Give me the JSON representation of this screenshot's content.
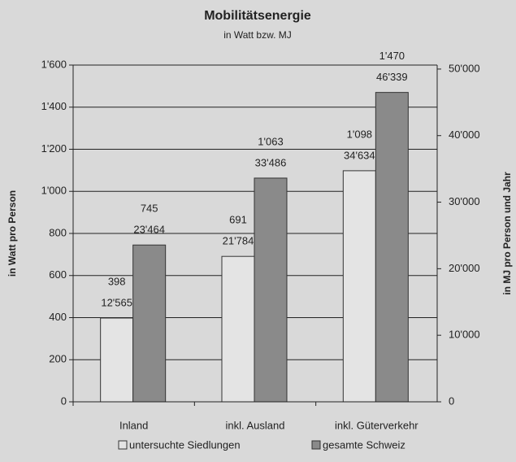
{
  "chart_data": {
    "type": "bar",
    "title": "Mobilitätsenergie",
    "subtitle": "in Watt bzw. MJ",
    "y_label": "in Watt pro Person",
    "y2_label": "in MJ pro Person und Jahr",
    "categories": [
      "Inland",
      "inkl. Ausland",
      "inkl. Güterverkehr"
    ],
    "series": [
      {
        "name": "untersuchte Siedlungen",
        "color": "#e4e4e4",
        "values": [
          398,
          691,
          1098
        ],
        "value_labels": [
          "398",
          "691",
          "1'098"
        ],
        "y2_values": [
          12565,
          21784,
          34634
        ],
        "y2_value_labels": [
          "12'565",
          "21'784",
          "34'634"
        ]
      },
      {
        "name": "gesamte Schweiz",
        "color": "#8a8a8a",
        "values": [
          745,
          1063,
          1470
        ],
        "value_labels": [
          "745",
          "1'063",
          "1'470"
        ],
        "y2_values": [
          23464,
          33486,
          46339
        ],
        "y2_value_labels": [
          "23'464",
          "33'486",
          "46'339"
        ]
      }
    ],
    "ylim": [
      0,
      1600
    ],
    "yticks": [
      0,
      200,
      400,
      600,
      800,
      {
        "value": 1000,
        "label": "1'000"
      },
      {
        "value": 1200,
        "label": "1'200"
      },
      {
        "value": 1400,
        "label": "1'400"
      },
      {
        "value": 1600,
        "label": "1'600"
      }
    ],
    "y2lim": [
      0,
      50600
    ],
    "y2ticks": [
      0,
      {
        "value": 10000,
        "label": "10'000"
      },
      {
        "value": 20000,
        "label": "20'000"
      },
      {
        "value": 30000,
        "label": "30'000"
      },
      {
        "value": 40000,
        "label": "40'000"
      },
      {
        "value": 50000,
        "label": "50'000"
      }
    ],
    "grid": true,
    "legend": "bottom"
  }
}
